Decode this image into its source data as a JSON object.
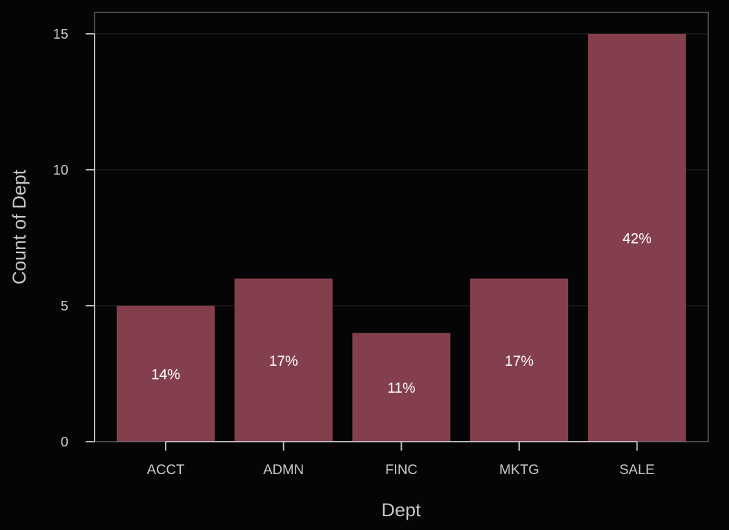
{
  "chart_data": {
    "type": "bar",
    "categories": [
      "ACCT",
      "ADMN",
      "FINC",
      "MKTG",
      "SALE"
    ],
    "values": [
      5,
      6,
      4,
      6,
      15
    ],
    "data_labels": [
      "14%",
      "17%",
      "11%",
      "17%",
      "42%"
    ],
    "xlabel": "Dept",
    "ylabel": "Count of Dept",
    "ylim": [
      0,
      15
    ],
    "yticks": [
      0,
      5,
      10,
      15
    ],
    "grid": true,
    "colors": {
      "bar": "#843f4d",
      "background": "#050505",
      "axis": "#bbbbbb",
      "grid": "#2a2a2a",
      "text": "#c8c8c8",
      "label": "#ffffff"
    }
  }
}
